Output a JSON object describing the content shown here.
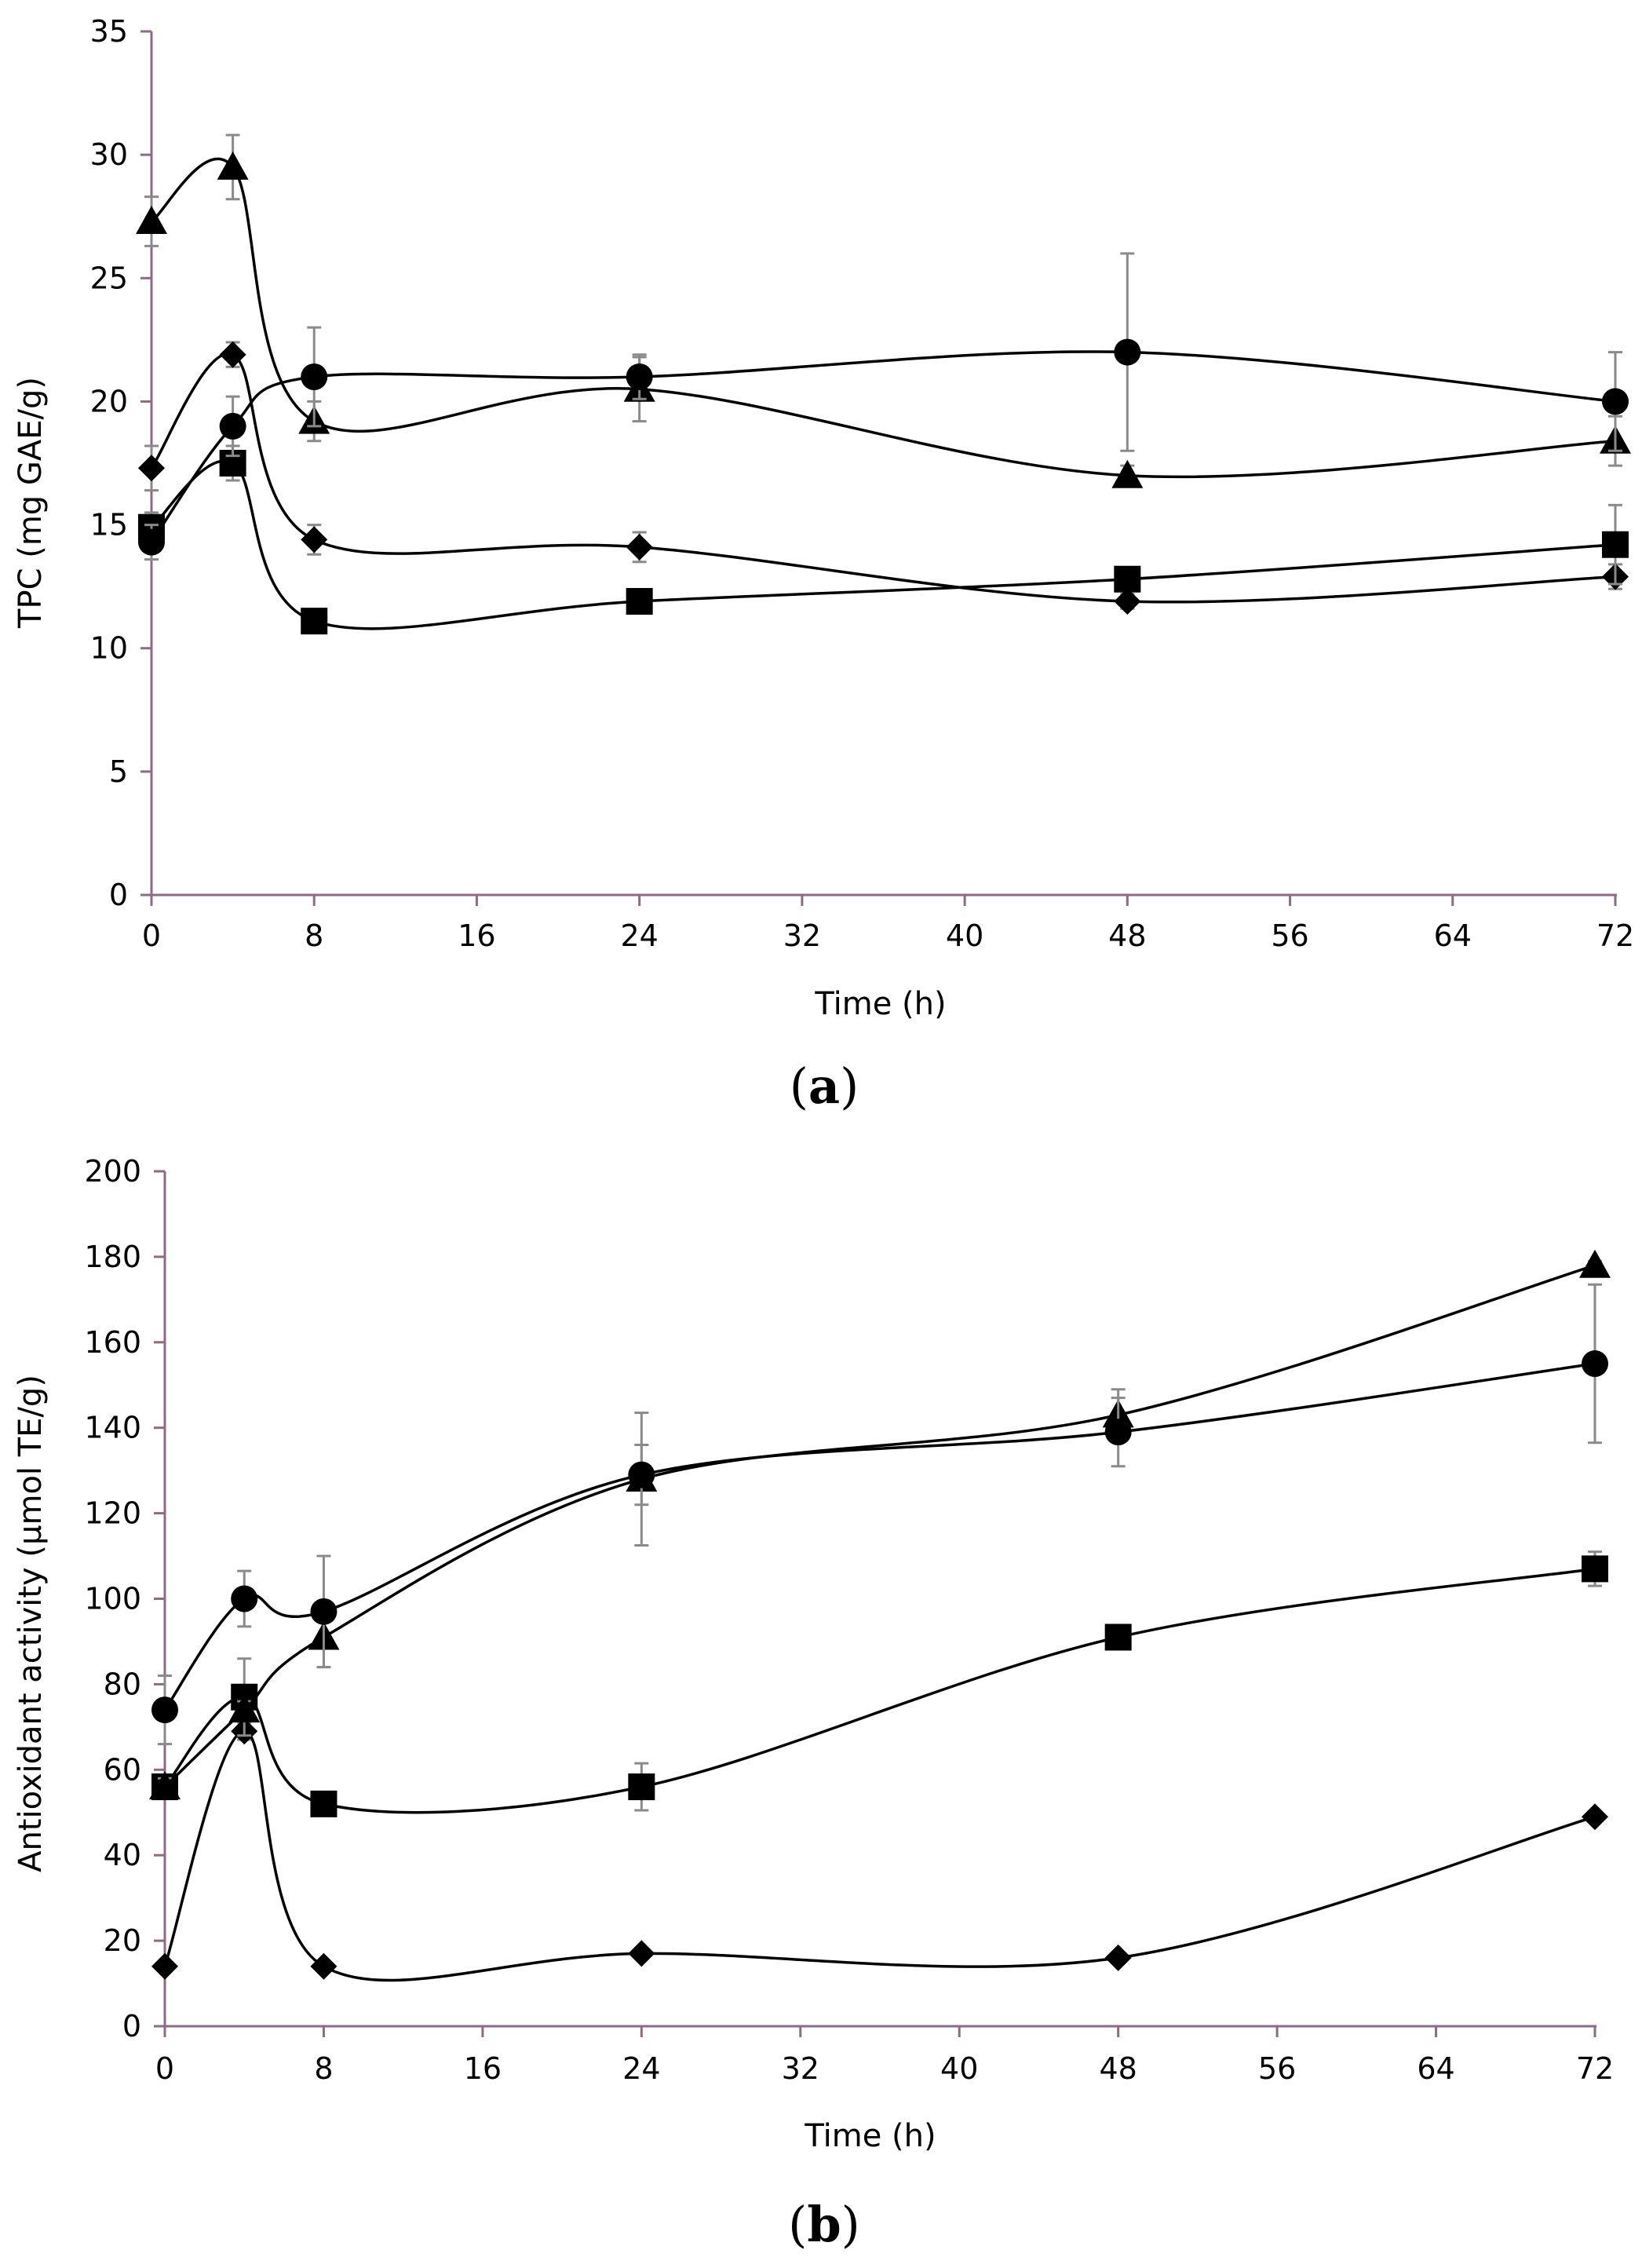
{
  "colors": {
    "axis": "#8e6a86",
    "ink": "#000000",
    "error_bar": "#8a8a8a"
  },
  "chart_data": [
    {
      "id": "a",
      "type": "line",
      "panel_label": "a",
      "title": "",
      "xlabel": "Time (h)",
      "ylabel": "TPC (mg GAE/g)",
      "xlim": [
        0,
        72
      ],
      "ylim": [
        0,
        35
      ],
      "xticks": [
        0,
        8,
        16,
        24,
        32,
        40,
        48,
        56,
        64,
        72
      ],
      "yticks": [
        0,
        5,
        10,
        15,
        20,
        25,
        30,
        35
      ],
      "grid": false,
      "x": [
        0,
        4,
        8,
        24,
        48,
        72
      ],
      "series": [
        {
          "name": "diamond",
          "marker": "diamond",
          "values": [
            17.3,
            21.9,
            14.4,
            14.1,
            11.9,
            12.9
          ],
          "errors": [
            0.9,
            0.5,
            0.6,
            0.6,
            0.3,
            0.5
          ]
        },
        {
          "name": "square",
          "marker": "square",
          "values": [
            14.9,
            17.5,
            11.1,
            11.9,
            12.8,
            14.2
          ],
          "errors": [
            0.6,
            0.7,
            0.3,
            0.4,
            0.4,
            1.6
          ]
        },
        {
          "name": "triangle",
          "marker": "triangle",
          "values": [
            27.3,
            29.5,
            19.2,
            20.5,
            17.0,
            18.4
          ],
          "errors": [
            1.0,
            1.3,
            0.8,
            1.3,
            0.4,
            1.0
          ]
        },
        {
          "name": "circle",
          "marker": "circle",
          "values": [
            14.3,
            19.0,
            21.0,
            21.0,
            22.0,
            20.0
          ],
          "errors": [
            0.7,
            1.2,
            2.0,
            0.9,
            4.0,
            2.0
          ]
        }
      ]
    },
    {
      "id": "b",
      "type": "line",
      "panel_label": "b",
      "title": "",
      "xlabel": "Time (h)",
      "ylabel": "Antioxidant activity (μmol TE/g)",
      "xlim": [
        0,
        72
      ],
      "ylim": [
        0,
        200
      ],
      "xticks": [
        0,
        8,
        16,
        24,
        32,
        40,
        48,
        56,
        64,
        72
      ],
      "yticks": [
        0,
        20,
        40,
        60,
        80,
        100,
        120,
        140,
        160,
        180,
        200
      ],
      "grid": false,
      "x": [
        0,
        4,
        8,
        24,
        48,
        72
      ],
      "series": [
        {
          "name": "diamond",
          "marker": "diamond",
          "values": [
            14,
            69,
            14,
            17,
            16,
            49
          ],
          "errors": [
            0.5,
            2.0,
            0.5,
            0.5,
            0.5,
            0.5
          ]
        },
        {
          "name": "square",
          "marker": "square",
          "values": [
            56,
            77,
            52,
            56,
            91,
            107
          ],
          "errors": [
            2.0,
            9.0,
            1.0,
            5.5,
            1.5,
            4.0
          ]
        },
        {
          "name": "triangle",
          "marker": "triangle",
          "values": [
            56,
            74,
            91,
            128,
            143,
            178
          ],
          "errors": [
            2.0,
            2.0,
            7.0,
            15.5,
            6.0,
            1.0
          ]
        },
        {
          "name": "circle",
          "marker": "circle",
          "values": [
            74,
            100,
            97,
            129,
            139,
            155
          ],
          "errors": [
            8.0,
            6.5,
            13.0,
            7.0,
            8.0,
            18.5
          ]
        }
      ]
    }
  ]
}
